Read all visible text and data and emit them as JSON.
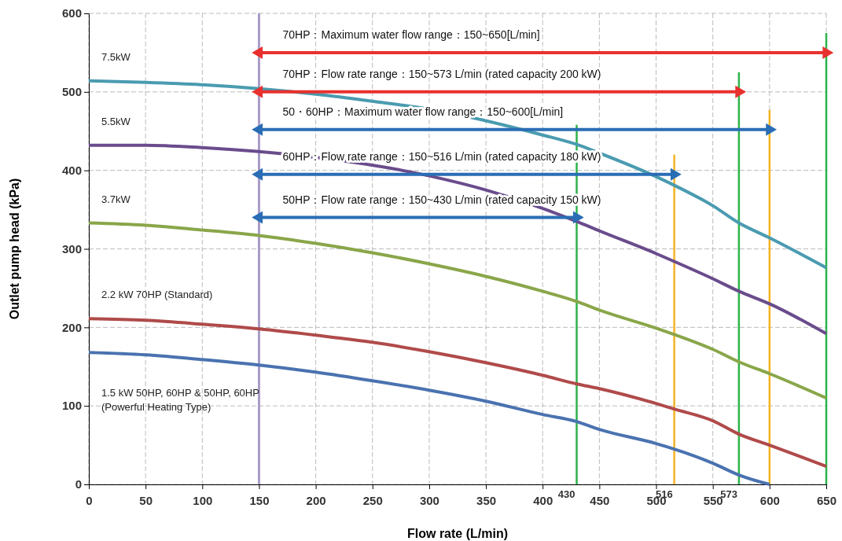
{
  "chart_data": {
    "type": "line",
    "xlabel": "Flow rate (L/min)",
    "ylabel": "Outlet pump head (kPa)",
    "x": [
      0,
      50,
      100,
      150,
      200,
      250,
      300,
      350,
      400,
      430,
      450,
      500,
      516,
      550,
      573,
      600,
      650
    ],
    "series": [
      {
        "name": "7.5kW",
        "color": "#4a9bb0",
        "x": [
          0,
          50,
          100,
          150,
          200,
          250,
          300,
          400,
          430,
          450,
          500,
          516,
          550,
          573,
          600,
          650
        ],
        "values": [
          514,
          512,
          509,
          504,
          497,
          488,
          478,
          445,
          433,
          422,
          392,
          381,
          355,
          333,
          314,
          276
        ]
      },
      {
        "name": "5.5kW",
        "color": "#6a4c8c",
        "x": [
          0,
          50,
          100,
          150,
          300,
          350,
          430,
          450,
          500,
          516,
          550,
          573,
          600,
          650
        ],
        "values": [
          432,
          432,
          429,
          424,
          393,
          375,
          335,
          323,
          294,
          284,
          262,
          246,
          230,
          192
        ]
      },
      {
        "name": "3.7kW",
        "color": "#8aa64a",
        "values": [
          333,
          330,
          324,
          317,
          307,
          295,
          281,
          265,
          246,
          233,
          222,
          199,
          191,
          172,
          156,
          141,
          110
        ]
      },
      {
        "name": "2.2 kW 70HP (Standard)",
        "color": "#b04a4a",
        "values": [
          211,
          209,
          204,
          198,
          190,
          181,
          169,
          155,
          139,
          128,
          122,
          103,
          96,
          81,
          64,
          50,
          23
        ]
      },
      {
        "name": "1.5 kW 50HP, 60HP & 50HP, 60HP\n(Powerful Heating Type)",
        "color": "#4a72b0",
        "values": [
          168,
          165,
          159,
          152,
          143,
          132,
          120,
          106,
          89,
          80,
          70,
          52,
          45,
          27,
          12,
          0,
          null
        ]
      },
      {
        "type": "line",
        "marker": "triangle",
        "color": "#e8312e",
        "x": [
          150,
          650
        ],
        "values": [
          550,
          550
        ]
      },
      {
        "type": "line",
        "marker": "triangle",
        "color": "#e8312e",
        "x": [
          150,
          573
        ],
        "values": [
          500,
          500
        ]
      },
      {
        "type": "line",
        "marker": "triangle",
        "color": "#2a6db5",
        "x": [
          150,
          600
        ],
        "values": [
          452,
          452
        ]
      },
      {
        "type": "line",
        "marker": "triangle",
        "color": "#2a6db5",
        "x": [
          150,
          516
        ],
        "values": [
          395,
          395
        ]
      },
      {
        "type": "line",
        "marker": "triangle",
        "color": "#2a6db5",
        "x": [
          150,
          430
        ],
        "values": [
          340,
          340
        ]
      }
    ],
    "xlim": [
      0,
      650
    ],
    "ylim": [
      0,
      600
    ],
    "xticks": [
      0,
      50,
      100,
      150,
      200,
      250,
      300,
      350,
      400,
      450,
      500,
      550,
      600,
      650
    ],
    "yticks": [
      0,
      100,
      200,
      300,
      400,
      500,
      600
    ],
    "grid": true,
    "line_style": "solid",
    "marker": "none",
    "ref_lines": [
      {
        "axis": "x",
        "value": 150,
        "label": null,
        "color": "#a99cc8"
      },
      {
        "axis": "x",
        "value": 430,
        "label": "430",
        "color": "#2db34a"
      },
      {
        "axis": "x",
        "value": 516,
        "label": "516",
        "color": "#f5b324"
      },
      {
        "axis": "x",
        "value": 573,
        "label": "573",
        "color": "#2db34a"
      },
      {
        "axis": "x",
        "value": 600,
        "label": null,
        "color": "#f5b324"
      },
      {
        "axis": "x",
        "value": 650,
        "label": null,
        "color": "#2db34a"
      }
    ],
    "annotations": [
      "70HP：Maximum water flow range：150~650[L/min]",
      "70HP：Flow rate range：150~573 L/min (rated capacity 200 kW)",
      "50・60HP：Maximum water flow range：150~600[L/min]",
      "60HP：Flow rate range：150~516 L/min (rated capacity 180 kW)",
      "50HP：Flow rate range：150~430 L/min (rated capacity 150 kW)"
    ]
  }
}
